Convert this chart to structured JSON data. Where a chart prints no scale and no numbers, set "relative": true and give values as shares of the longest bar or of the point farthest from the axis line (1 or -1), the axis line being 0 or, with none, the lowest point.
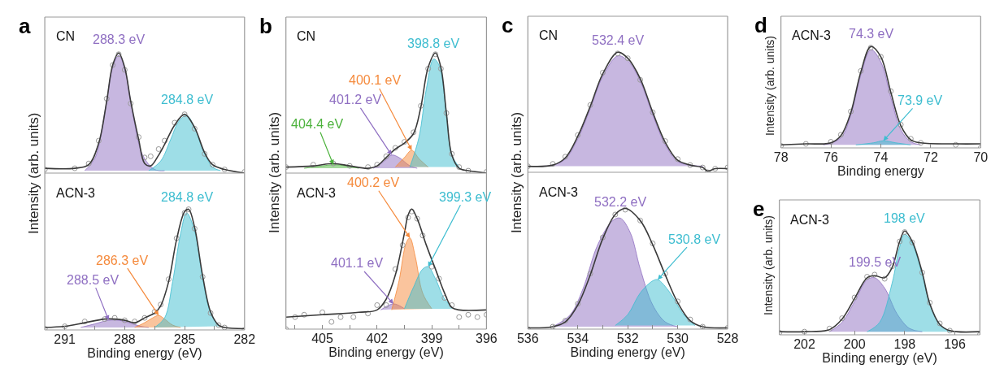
{
  "chart_data": [
    {
      "type": "line",
      "title": "a",
      "ylabel": "Intensity (arb. units)",
      "relative": true,
      "xlim": [
        292,
        282
      ],
      "annotations": [
        "CN"
      ],
      "series": [
        {
          "type": "area",
          "name": "288.3 eV",
          "color": "#8f6fc2",
          "x": [
            290,
            289.5,
            289.0,
            288.6,
            288.3,
            288.0,
            287.6,
            287.1,
            286.5,
            286
          ],
          "values": [
            0.02,
            0.12,
            0.5,
            0.88,
            0.98,
            0.87,
            0.5,
            0.15,
            0.03,
            0.02
          ]
        },
        {
          "type": "area",
          "name": "284.8 eV",
          "color": "#3dbdd0",
          "x": [
            286.8,
            286.2,
            285.7,
            285.3,
            284.9,
            284.5,
            284.1,
            283.6,
            283.2
          ],
          "values": [
            0.02,
            0.1,
            0.28,
            0.43,
            0.48,
            0.38,
            0.2,
            0.05,
            0.02
          ]
        },
        {
          "type": "scatter",
          "color": "#9a9a9a",
          "x": [
            292,
            290.5,
            289.8,
            289.3,
            288.9,
            288.6,
            288.3,
            288.0,
            287.7,
            287.3,
            287.0,
            286.7,
            286.3,
            286.0,
            285.5,
            285.0,
            284.5,
            284.0,
            283.6,
            283.0,
            282.0
          ],
          "values": [
            0.03,
            0.04,
            0.08,
            0.27,
            0.62,
            0.9,
            0.99,
            0.86,
            0.58,
            0.3,
            0.13,
            0.14,
            0.2,
            0.27,
            0.42,
            0.49,
            0.37,
            0.16,
            0.07,
            0.03,
            0.01
          ]
        },
        {
          "type": "line",
          "color": "#3a3a3a",
          "x": [
            292,
            290.5,
            289.8,
            289.3,
            288.9,
            288.6,
            288.3,
            288.0,
            287.7,
            287.3,
            287.0,
            286.7,
            286.3,
            286.0,
            285.5,
            285.0,
            284.5,
            284.0,
            283.6,
            283.0,
            282.0
          ],
          "values": [
            0.04,
            0.04,
            0.07,
            0.25,
            0.6,
            0.9,
            1.0,
            0.88,
            0.6,
            0.28,
            0.08,
            0.06,
            0.15,
            0.24,
            0.4,
            0.49,
            0.38,
            0.17,
            0.07,
            0.03,
            0.0
          ]
        }
      ]
    },
    {
      "type": "line",
      "xlabel": "Binding energy (eV)",
      "relative": true,
      "xlim": [
        292,
        282
      ],
      "xticks": [
        291,
        {
          "value": 289.5,
          "label": null
        },
        288,
        {
          "value": 286.5,
          "label": null
        },
        285,
        {
          "value": 283.5,
          "label": null
        },
        282
      ],
      "annotations": [
        "ACN-3"
      ],
      "series": [
        {
          "type": "area",
          "name": "288.5 eV",
          "color": "#8f6fc2",
          "x": [
            290.2,
            289.5,
            288.8,
            288.3,
            287.8,
            287.2,
            286.8
          ],
          "values": [
            0.02,
            0.05,
            0.08,
            0.08,
            0.06,
            0.03,
            0.02
          ]
        },
        {
          "type": "area",
          "name": "286.3 eV",
          "color": "#f58a3c",
          "x": [
            287.5,
            287.0,
            286.6,
            286.3,
            286.0,
            285.6,
            285.2
          ],
          "values": [
            0.02,
            0.06,
            0.1,
            0.12,
            0.09,
            0.04,
            0.02
          ]
        },
        {
          "type": "area",
          "name": "284.8 eV",
          "color": "#3dbdd0",
          "x": [
            286.5,
            286.0,
            285.6,
            285.2,
            284.9,
            284.5,
            284.1,
            283.7,
            283.3
          ],
          "values": [
            0.02,
            0.1,
            0.4,
            0.8,
            0.97,
            0.82,
            0.43,
            0.14,
            0.03
          ]
        },
        {
          "type": "scatter",
          "color": "#9a9a9a",
          "x": [
            292,
            291,
            290,
            289,
            288.5,
            288,
            287.5,
            287,
            286.5,
            286.2,
            285.8,
            285.4,
            285.0,
            284.8,
            284.5,
            284.1,
            283.7,
            283.3,
            283,
            282
          ],
          "values": [
            0.01,
            0.03,
            0.07,
            0.09,
            0.1,
            0.08,
            0.07,
            0.1,
            0.15,
            0.21,
            0.42,
            0.76,
            0.97,
            1.0,
            0.84,
            0.44,
            0.14,
            0.04,
            0.02,
            0.0
          ]
        },
        {
          "type": "line",
          "color": "#3a3a3a",
          "x": [
            292,
            291,
            290,
            289,
            288.5,
            288,
            287.5,
            287,
            286.5,
            286.2,
            285.8,
            285.4,
            285.0,
            284.8,
            284.5,
            284.1,
            283.7,
            283.3,
            283,
            282
          ],
          "values": [
            0.02,
            0.03,
            0.06,
            0.09,
            0.09,
            0.08,
            0.06,
            0.1,
            0.14,
            0.2,
            0.4,
            0.75,
            0.98,
            1.0,
            0.85,
            0.45,
            0.15,
            0.04,
            0.02,
            0.01
          ]
        }
      ]
    },
    {
      "type": "line",
      "title": "b",
      "ylabel": "Intensity (arb. units)",
      "relative": true,
      "xlim": [
        407,
        396
      ],
      "annotations": [
        "CN"
      ],
      "series": [
        {
          "type": "area",
          "name": "404.4 eV",
          "color": "#4cb23c",
          "x": [
            406,
            405,
            404.4,
            403.7,
            403
          ],
          "values": [
            0.04,
            0.06,
            0.07,
            0.06,
            0.04
          ]
        },
        {
          "type": "area",
          "name": "401.2 eV",
          "color": "#8f6fc2",
          "x": [
            402.2,
            401.6,
            401.2,
            400.8,
            400.2,
            399.8
          ],
          "values": [
            0.04,
            0.1,
            0.15,
            0.13,
            0.06,
            0.04
          ]
        },
        {
          "type": "area",
          "name": "400.1 eV",
          "color": "#f58a3c",
          "x": [
            401,
            400.5,
            400.1,
            399.7,
            399.2
          ],
          "values": [
            0.05,
            0.13,
            0.19,
            0.12,
            0.05
          ]
        },
        {
          "type": "area",
          "name": "398.8 eV",
          "color": "#3dbdd0",
          "x": [
            400.2,
            399.7,
            399.3,
            398.9,
            398.6,
            398.2,
            397.9,
            397.5
          ],
          "values": [
            0.05,
            0.3,
            0.7,
            0.95,
            0.9,
            0.5,
            0.15,
            0.05
          ]
        },
        {
          "type": "scatter",
          "color": "#9a9a9a",
          "x": [
            407,
            405.5,
            404.4,
            403.5,
            402.5,
            402,
            401.5,
            401,
            400.5,
            400,
            399.6,
            399.2,
            398.8,
            398.5,
            398.2,
            397.9,
            397.5,
            397,
            396
          ],
          "values": [
            0.05,
            0.07,
            0.08,
            0.06,
            0.05,
            0.07,
            0.14,
            0.21,
            0.26,
            0.34,
            0.56,
            0.87,
            0.99,
            0.87,
            0.5,
            0.16,
            0.05,
            0.02,
            0.01
          ]
        },
        {
          "type": "line",
          "color": "#3a3a3a",
          "x": [
            407,
            405.5,
            404.4,
            403.5,
            402.5,
            402,
            401.5,
            401,
            400.5,
            400,
            399.6,
            399.2,
            398.8,
            398.5,
            398.2,
            397.9,
            397.5,
            397,
            396
          ],
          "values": [
            0.05,
            0.06,
            0.08,
            0.06,
            0.04,
            0.06,
            0.13,
            0.2,
            0.25,
            0.33,
            0.55,
            0.88,
            1.0,
            0.88,
            0.5,
            0.15,
            0.04,
            0.02,
            0.0
          ]
        }
      ]
    },
    {
      "type": "line",
      "xlabel": "Binding energy (eV)",
      "relative": true,
      "xlim": [
        407,
        396
      ],
      "xticks": [
        {
          "value": 406.5,
          "label": null
        },
        405,
        {
          "value": 403.5,
          "label": null
        },
        402,
        {
          "value": 400.5,
          "label": null
        },
        399,
        {
          "value": 397.5,
          "label": null
        },
        396
      ],
      "annotations": [
        "ACN-3"
      ],
      "series": [
        {
          "type": "area",
          "name": "401.1 eV",
          "color": "#8f6fc2",
          "x": [
            401.8,
            401.1,
            400.5
          ],
          "values": [
            0.16,
            0.21,
            0.17
          ]
        },
        {
          "type": "area",
          "name": "400.2 eV",
          "color": "#f58a3c",
          "x": [
            401.2,
            400.8,
            400.4,
            400.2,
            399.9,
            399.5,
            399
          ],
          "values": [
            0.16,
            0.4,
            0.72,
            0.76,
            0.6,
            0.3,
            0.17
          ]
        },
        {
          "type": "area",
          "name": "399.3 eV",
          "color": "#3dbdd0",
          "x": [
            400.5,
            400,
            399.5,
            399.2,
            398.8,
            398.3,
            397.8
          ],
          "values": [
            0.17,
            0.35,
            0.5,
            0.52,
            0.42,
            0.25,
            0.17
          ]
        },
        {
          "type": "scatter",
          "color": "#9a9a9a",
          "x": [
            407,
            406.5,
            406,
            405,
            404.5,
            404,
            403.3,
            402.5,
            402,
            401.5,
            401,
            400.6,
            400.3,
            400.1,
            399.8,
            399.5,
            399,
            398.6,
            398.3,
            397.9,
            397.5,
            397,
            396.5,
            396
          ],
          "values": [
            0.0,
            0.1,
            0.12,
            0.14,
            0.06,
            0.1,
            0.1,
            0.13,
            0.2,
            0.2,
            0.5,
            0.7,
            0.93,
            0.98,
            0.92,
            0.78,
            0.52,
            0.42,
            0.26,
            0.2,
            0.1,
            0.12,
            0.1,
            0.12
          ]
        },
        {
          "type": "line",
          "color": "#3a3a3a",
          "x": [
            407,
            405,
            403,
            402,
            401.5,
            401,
            400.5,
            400.3,
            400.1,
            399.8,
            399.3,
            398.8,
            398.3,
            397.9,
            397.5,
            396
          ],
          "values": [
            0.1,
            0.12,
            0.14,
            0.16,
            0.25,
            0.45,
            0.8,
            0.95,
            1.0,
            0.92,
            0.7,
            0.5,
            0.3,
            0.18,
            0.16,
            0.16
          ]
        }
      ]
    },
    {
      "type": "line",
      "title": "c",
      "ylabel": "Intensity (arb. units)",
      "relative": true,
      "xlim": [
        536,
        528
      ],
      "annotations": [
        "CN"
      ],
      "series": [
        {
          "type": "area",
          "name": "532.4 eV",
          "color": "#8f6fc2",
          "x": [
            535.5,
            535,
            534.5,
            534,
            533.5,
            533,
            532.4,
            532,
            531.5,
            531,
            530.5,
            530,
            529.5,
            529
          ],
          "values": [
            0.05,
            0.06,
            0.11,
            0.28,
            0.53,
            0.8,
            0.97,
            0.93,
            0.76,
            0.48,
            0.23,
            0.09,
            0.06,
            0.05
          ]
        },
        {
          "type": "scatter",
          "color": "#9a9a9a",
          "x": [
            536,
            535,
            534.5,
            534,
            533.5,
            533,
            532.4,
            532,
            531.5,
            531,
            530.5,
            530,
            529.5,
            529,
            528.8,
            528.5,
            528
          ],
          "values": [
            0.05,
            0.07,
            0.13,
            0.31,
            0.56,
            0.83,
            0.99,
            0.95,
            0.77,
            0.5,
            0.26,
            0.11,
            0.06,
            0.04,
            0.0,
            0.03,
            0.04
          ]
        },
        {
          "type": "line",
          "color": "#3a3a3a",
          "x": [
            536,
            535,
            534.5,
            534,
            533.5,
            533,
            532.4,
            532,
            531.5,
            531,
            530.5,
            530,
            529.5,
            529,
            528.8,
            528.5,
            528
          ],
          "values": [
            0.05,
            0.06,
            0.12,
            0.3,
            0.55,
            0.82,
            1.0,
            0.95,
            0.78,
            0.5,
            0.25,
            0.1,
            0.06,
            0.04,
            0.01,
            0.03,
            0.03
          ]
        }
      ]
    },
    {
      "type": "line",
      "xlabel": "Binding energy (eV)",
      "relative": true,
      "xlim": [
        536,
        528
      ],
      "xticks": [
        536,
        {
          "value": 535,
          "label": null
        },
        534,
        {
          "value": 533,
          "label": null
        },
        532,
        {
          "value": 531,
          "label": null
        },
        530,
        {
          "value": 529,
          "label": null
        },
        528
      ],
      "annotations": [
        "ACN-3"
      ],
      "series": [
        {
          "type": "area",
          "name": "532.2 eV",
          "color": "#8f6fc2",
          "x": [
            535,
            534.3,
            533.8,
            533.2,
            532.6,
            532.3,
            531.9,
            531.5,
            531,
            530.5,
            530
          ],
          "values": [
            0.02,
            0.12,
            0.33,
            0.7,
            0.9,
            0.92,
            0.8,
            0.5,
            0.2,
            0.06,
            0.02
          ]
        },
        {
          "type": "area",
          "name": "530.8 eV",
          "color": "#3dbdd0",
          "x": [
            532.5,
            532,
            531.5,
            531,
            530.8,
            530.3,
            529.8,
            529.3
          ],
          "values": [
            0.03,
            0.12,
            0.3,
            0.4,
            0.41,
            0.3,
            0.13,
            0.03
          ]
        },
        {
          "type": "scatter",
          "color": "#9a9a9a",
          "x": [
            536,
            535,
            534.5,
            534,
            533.5,
            533,
            532.5,
            532.1,
            531.5,
            531,
            530.5,
            530,
            529.5,
            529,
            528
          ],
          "values": [
            0.0,
            0.02,
            0.07,
            0.21,
            0.46,
            0.76,
            0.95,
            0.99,
            0.9,
            0.71,
            0.46,
            0.23,
            0.08,
            0.02,
            0.01
          ]
        },
        {
          "type": "line",
          "color": "#3a3a3a",
          "x": [
            536,
            535,
            534.5,
            534,
            533.5,
            533,
            532.5,
            532.1,
            531.5,
            531,
            530.5,
            530,
            529.5,
            529,
            528
          ],
          "values": [
            0.01,
            0.02,
            0.06,
            0.2,
            0.45,
            0.75,
            0.95,
            1.0,
            0.9,
            0.7,
            0.45,
            0.22,
            0.07,
            0.02,
            0.01
          ]
        }
      ]
    },
    {
      "type": "line",
      "title": "d",
      "xlabel": "Binding energy",
      "ylabel": "Intensity (arb. units)",
      "relative": true,
      "xlim": [
        78,
        70
      ],
      "xticks": [
        78,
        76,
        74,
        72,
        70
      ],
      "annotations": [
        "ACN-3"
      ],
      "series": [
        {
          "type": "area",
          "name": "74.3 eV",
          "color": "#8f6fc2",
          "x": [
            76.3,
            75.6,
            75.2,
            74.8,
            74.4,
            74.0,
            73.6,
            73.2,
            72.8,
            72.4
          ],
          "values": [
            0.03,
            0.1,
            0.33,
            0.72,
            0.97,
            0.85,
            0.5,
            0.18,
            0.06,
            0.03
          ]
        },
        {
          "type": "area",
          "name": "73.9 eV",
          "color": "#3dbdd0",
          "x": [
            75,
            74.3,
            73.9,
            73.4,
            72.8
          ],
          "values": [
            0.03,
            0.05,
            0.07,
            0.05,
            0.03
          ]
        },
        {
          "type": "scatter",
          "color": "#9a9a9a",
          "x": [
            78,
            77,
            76,
            75.6,
            75.2,
            74.8,
            74.4,
            74.0,
            73.6,
            73.2,
            72.8,
            72.4,
            71,
            70
          ],
          "values": [
            0.02,
            0.04,
            0.06,
            0.13,
            0.36,
            0.76,
            0.99,
            0.9,
            0.56,
            0.23,
            0.09,
            0.05,
            0.03,
            0.0
          ]
        },
        {
          "type": "line",
          "color": "#3a3a3a",
          "x": [
            78,
            77,
            76,
            75.6,
            75.2,
            74.8,
            74.4,
            74.0,
            73.6,
            73.2,
            72.8,
            72.4,
            71,
            70
          ],
          "values": [
            0.03,
            0.04,
            0.05,
            0.12,
            0.35,
            0.75,
            1.0,
            0.9,
            0.55,
            0.22,
            0.08,
            0.05,
            0.04,
            0.04
          ]
        }
      ]
    },
    {
      "type": "line",
      "title": "e",
      "xlabel": "Binding energy (eV)",
      "ylabel": "Intensity (arb. units)",
      "relative": true,
      "xlim": [
        203,
        195
      ],
      "xticks": [
        202,
        200,
        198,
        196
      ],
      "annotations": [
        "ACN-3"
      ],
      "series": [
        {
          "type": "area",
          "name": "199.5 eV",
          "color": "#8f6fc2",
          "x": [
            201,
            200.5,
            200,
            199.5,
            199.2,
            198.8,
            198.3,
            197.8,
            197.3
          ],
          "values": [
            0.03,
            0.12,
            0.32,
            0.53,
            0.55,
            0.45,
            0.2,
            0.06,
            0.03
          ]
        },
        {
          "type": "area",
          "name": "198 eV",
          "color": "#3dbdd0",
          "x": [
            199.5,
            199,
            198.5,
            198.2,
            198,
            197.7,
            197.3,
            197,
            196.6,
            196.2
          ],
          "values": [
            0.03,
            0.12,
            0.5,
            0.85,
            0.97,
            0.88,
            0.58,
            0.3,
            0.1,
            0.03
          ]
        },
        {
          "type": "scatter",
          "color": "#9a9a9a",
          "x": [
            203,
            202,
            201,
            200.5,
            200,
            199.5,
            199.2,
            198.8,
            198.5,
            198.2,
            198,
            197.7,
            197.3,
            197,
            196.6,
            196.2,
            195
          ],
          "values": [
            0.02,
            0.03,
            0.06,
            0.16,
            0.36,
            0.56,
            0.58,
            0.54,
            0.66,
            0.9,
            0.99,
            0.89,
            0.6,
            0.31,
            0.11,
            0.04,
            0.0
          ]
        },
        {
          "type": "line",
          "color": "#3a3a3a",
          "x": [
            203,
            202,
            201,
            200.5,
            200,
            199.5,
            199.2,
            198.8,
            198.5,
            198.2,
            198,
            197.7,
            197.3,
            197,
            196.6,
            196.2,
            195
          ],
          "values": [
            0.03,
            0.03,
            0.05,
            0.15,
            0.35,
            0.55,
            0.57,
            0.55,
            0.65,
            0.9,
            1.0,
            0.9,
            0.6,
            0.3,
            0.1,
            0.04,
            0.03
          ]
        }
      ]
    }
  ]
}
